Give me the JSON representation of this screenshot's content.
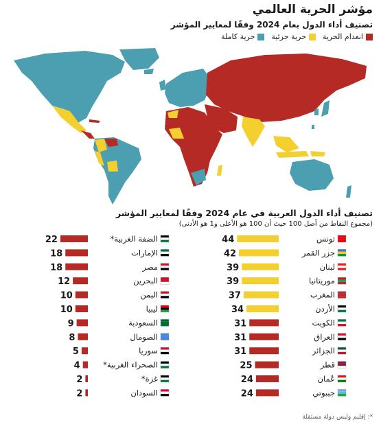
{
  "header": {
    "title": "مؤشر الحرية العالمي",
    "subtitle": "تصنيف أداء الدول بعام 2024 وفقًا لمعايير المؤشر"
  },
  "legend": [
    {
      "label": "انعدام الحرية",
      "color": "#b52a25"
    },
    {
      "label": "حرية جزئية",
      "color": "#f3cf2f"
    },
    {
      "label": "حرية كاملة",
      "color": "#4b9fb0"
    }
  ],
  "colors": {
    "free": "#4b9fb0",
    "partly_free": "#f3cf2f",
    "not_free": "#b52a25",
    "map_land": "#b52a25"
  },
  "section2": {
    "title": "تصنيف أداء الدول العربية في عام 2024 وفقًا لمعايير المؤشر",
    "subtitle": "(مجموع النقاط من أصل 100 حيث أن 100 هو الأعلى و1 هو الأدنى)"
  },
  "footnote": "*: إقليم وليس دولة مستقلة",
  "chart_data": {
    "type": "bar",
    "title": "تصنيف أداء الدول العربية في عام 2024 وفقًا لمعايير المؤشر",
    "xlim": [
      0,
      100
    ],
    "columns": [
      {
        "items": [
          {
            "name": "تونس",
            "value": 44,
            "status": "partly_free",
            "flag": "tunisia"
          },
          {
            "name": "جزر القمر",
            "value": 42,
            "status": "partly_free",
            "flag": "comoros"
          },
          {
            "name": "لبنان",
            "value": 39,
            "status": "partly_free",
            "flag": "lebanon"
          },
          {
            "name": "موريتانيا",
            "value": 39,
            "status": "partly_free",
            "flag": "mauritania"
          },
          {
            "name": "المغرب",
            "value": 37,
            "status": "partly_free",
            "flag": "morocco"
          },
          {
            "name": "الأردن",
            "value": 34,
            "status": "partly_free",
            "flag": "jordan"
          },
          {
            "name": "الكويت",
            "value": 31,
            "status": "not_free",
            "flag": "kuwait"
          },
          {
            "name": "العراق",
            "value": 31,
            "status": "not_free",
            "flag": "iraq"
          },
          {
            "name": "الجزائر",
            "value": 31,
            "status": "not_free",
            "flag": "algeria"
          },
          {
            "name": "قطر",
            "value": 25,
            "status": "not_free",
            "flag": "qatar"
          },
          {
            "name": "عُمان",
            "value": 24,
            "status": "not_free",
            "flag": "oman"
          },
          {
            "name": "جيبوتي",
            "value": 24,
            "status": "not_free",
            "flag": "djibouti"
          }
        ]
      },
      {
        "items": [
          {
            "name": "الضفة الغربية*",
            "value": 22,
            "status": "not_free",
            "flag": "palestine"
          },
          {
            "name": "الإمارات",
            "value": 18,
            "status": "not_free",
            "flag": "uae"
          },
          {
            "name": "مصر",
            "value": 18,
            "status": "not_free",
            "flag": "egypt"
          },
          {
            "name": "البحرين",
            "value": 12,
            "status": "not_free",
            "flag": "bahrain"
          },
          {
            "name": "اليمن",
            "value": 10,
            "status": "not_free",
            "flag": "yemen"
          },
          {
            "name": "ليبيا",
            "value": 10,
            "status": "not_free",
            "flag": "libya"
          },
          {
            "name": "السعودية",
            "value": 9,
            "status": "not_free",
            "flag": "saudi"
          },
          {
            "name": "الصومال",
            "value": 8,
            "status": "not_free",
            "flag": "somalia"
          },
          {
            "name": "سوريا",
            "value": 5,
            "status": "not_free",
            "flag": "syria"
          },
          {
            "name": "الصحراء الغربية*",
            "value": 4,
            "status": "not_free",
            "flag": "western_sahara"
          },
          {
            "name": "غزة*",
            "value": 2,
            "status": "not_free",
            "flag": "palestine"
          },
          {
            "name": "السودان",
            "value": 2,
            "status": "not_free",
            "flag": "sudan"
          }
        ]
      }
    ]
  }
}
